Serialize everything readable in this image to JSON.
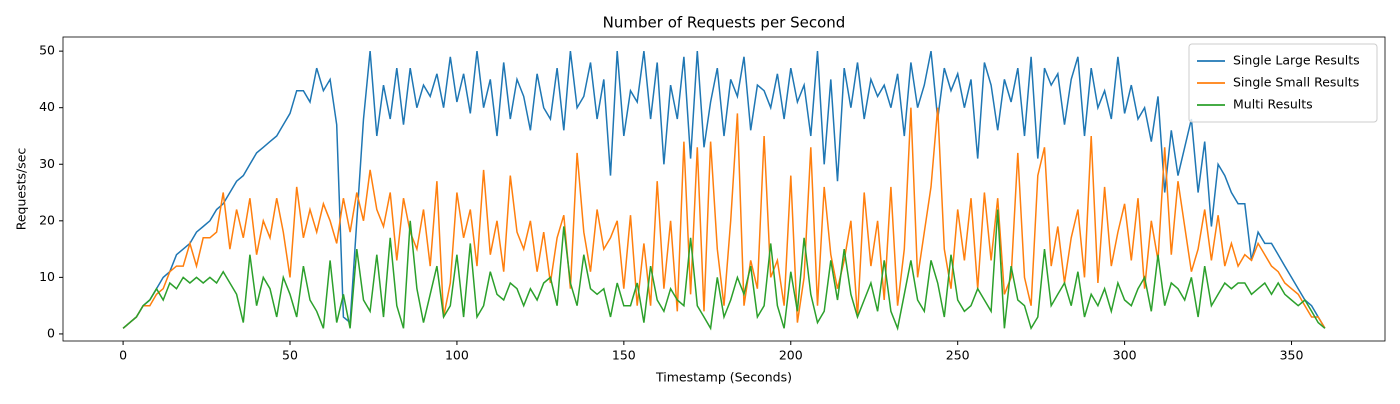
{
  "chart_data": {
    "type": "line",
    "title": "Number of Requests per Second",
    "x_label": "Timestamp (Seconds)",
    "y_label": "Requests/sec",
    "x": [
      0,
      2,
      4,
      6,
      8,
      10,
      12,
      14,
      16,
      18,
      20,
      22,
      24,
      26,
      28,
      30,
      32,
      34,
      36,
      38,
      40,
      42,
      44,
      46,
      48,
      50,
      52,
      54,
      56,
      58,
      60,
      62,
      64,
      66,
      68,
      70,
      72,
      74,
      76,
      78,
      80,
      82,
      84,
      86,
      88,
      90,
      92,
      94,
      96,
      98,
      100,
      102,
      104,
      106,
      108,
      110,
      112,
      114,
      116,
      118,
      120,
      122,
      124,
      126,
      128,
      130,
      132,
      134,
      136,
      138,
      140,
      142,
      144,
      146,
      148,
      150,
      152,
      154,
      156,
      158,
      160,
      162,
      164,
      166,
      168,
      170,
      172,
      174,
      176,
      178,
      180,
      182,
      184,
      186,
      188,
      190,
      192,
      194,
      196,
      198,
      200,
      202,
      204,
      206,
      208,
      210,
      212,
      214,
      216,
      218,
      220,
      222,
      224,
      226,
      228,
      230,
      232,
      234,
      236,
      238,
      240,
      242,
      244,
      246,
      248,
      250,
      252,
      254,
      256,
      258,
      260,
      262,
      264,
      266,
      268,
      270,
      272,
      274,
      276,
      278,
      280,
      282,
      284,
      286,
      288,
      290,
      292,
      294,
      296,
      298,
      300,
      302,
      304,
      306,
      308,
      310,
      312,
      314,
      316,
      318,
      320,
      322,
      324,
      326,
      328,
      330,
      332,
      334,
      336,
      338,
      340,
      342,
      344,
      346,
      348,
      350,
      352,
      354,
      356,
      358,
      360
    ],
    "series": [
      {
        "name": "Single Large Results",
        "color": "#1f77b4",
        "values": [
          1,
          2,
          3,
          5,
          6,
          8,
          10,
          11,
          14,
          15,
          16,
          18,
          19,
          20,
          22,
          23,
          25,
          27,
          28,
          30,
          32,
          33,
          34,
          35,
          37,
          39,
          43,
          43,
          41,
          47,
          43,
          45,
          37,
          3,
          2,
          20,
          38,
          50,
          35,
          44,
          38,
          47,
          37,
          47,
          40,
          44,
          42,
          46,
          40,
          49,
          41,
          46,
          39,
          50,
          40,
          45,
          35,
          48,
          38,
          45,
          42,
          36,
          46,
          40,
          38,
          47,
          36,
          50,
          40,
          42,
          48,
          38,
          45,
          28,
          50,
          35,
          43,
          41,
          50,
          38,
          48,
          30,
          44,
          38,
          49,
          31,
          50,
          33,
          41,
          47,
          35,
          45,
          42,
          49,
          36,
          44,
          43,
          40,
          46,
          38,
          47,
          41,
          44,
          35,
          50,
          30,
          45,
          27,
          47,
          40,
          48,
          38,
          45,
          42,
          44,
          40,
          46,
          35,
          48,
          40,
          44,
          50,
          38,
          47,
          43,
          46,
          40,
          45,
          31,
          48,
          44,
          36,
          45,
          41,
          47,
          35,
          49,
          31,
          47,
          44,
          46,
          37,
          45,
          49,
          35,
          47,
          40,
          43,
          38,
          49,
          39,
          44,
          38,
          40,
          34,
          42,
          25,
          36,
          28,
          33,
          38,
          25,
          34,
          19,
          30,
          28,
          25,
          23,
          23,
          13,
          18,
          16,
          16,
          14,
          12,
          10,
          8,
          6,
          5,
          3,
          1
        ]
      },
      {
        "name": "Single Small Results",
        "color": "#ff7f0e",
        "values": [
          1,
          2,
          3,
          5,
          5,
          7,
          8,
          11,
          12,
          12,
          16,
          12,
          17,
          17,
          18,
          25,
          15,
          22,
          17,
          24,
          14,
          20,
          17,
          24,
          18,
          10,
          26,
          17,
          22,
          18,
          23,
          20,
          16,
          24,
          18,
          25,
          20,
          29,
          22,
          19,
          25,
          13,
          24,
          18,
          15,
          22,
          12,
          27,
          3,
          9,
          25,
          17,
          22,
          12,
          29,
          14,
          20,
          11,
          28,
          18,
          15,
          20,
          11,
          18,
          9,
          17,
          21,
          8,
          32,
          18,
          11,
          22,
          15,
          17,
          20,
          8,
          21,
          5,
          16,
          5,
          27,
          8,
          20,
          4,
          34,
          7,
          33,
          4,
          34,
          15,
          5,
          20,
          39,
          5,
          13,
          8,
          35,
          10,
          13,
          5,
          28,
          2,
          10,
          33,
          5,
          26,
          14,
          8,
          13,
          20,
          3,
          25,
          12,
          20,
          6,
          26,
          5,
          15,
          40,
          10,
          18,
          26,
          40,
          15,
          8,
          22,
          13,
          24,
          8,
          25,
          13,
          24,
          7,
          10,
          32,
          10,
          5,
          28,
          33,
          12,
          19,
          9,
          17,
          22,
          10,
          35,
          9,
          26,
          12,
          18,
          23,
          13,
          24,
          8,
          20,
          13,
          33,
          14,
          27,
          19,
          11,
          15,
          22,
          13,
          21,
          12,
          16,
          12,
          14,
          13,
          16,
          14,
          12,
          11,
          9,
          8,
          7,
          5,
          3,
          3,
          1
        ]
      },
      {
        "name": "Multi Results",
        "color": "#2ca02c",
        "values": [
          1,
          2,
          3,
          5,
          6,
          8,
          6,
          9,
          8,
          10,
          9,
          10,
          9,
          10,
          9,
          11,
          9,
          7,
          2,
          14,
          5,
          10,
          8,
          3,
          10,
          7,
          3,
          12,
          6,
          4,
          1,
          13,
          2,
          7,
          1,
          15,
          6,
          4,
          14,
          3,
          17,
          5,
          1,
          20,
          8,
          2,
          7,
          12,
          3,
          5,
          14,
          3,
          16,
          3,
          5,
          11,
          7,
          6,
          9,
          8,
          5,
          8,
          6,
          9,
          10,
          5,
          19,
          9,
          5,
          14,
          8,
          7,
          8,
          3,
          9,
          5,
          5,
          9,
          2,
          12,
          6,
          4,
          8,
          6,
          5,
          17,
          5,
          3,
          1,
          10,
          3,
          6,
          10,
          7,
          12,
          3,
          5,
          16,
          5,
          1,
          11,
          4,
          17,
          7,
          2,
          4,
          13,
          6,
          15,
          7,
          3,
          6,
          9,
          4,
          13,
          4,
          1,
          7,
          13,
          6,
          4,
          13,
          9,
          3,
          14,
          6,
          4,
          5,
          8,
          6,
          4,
          22,
          1,
          12,
          6,
          5,
          1,
          3,
          15,
          5,
          7,
          9,
          5,
          11,
          3,
          7,
          5,
          8,
          4,
          9,
          6,
          5,
          8,
          10,
          4,
          14,
          5,
          9,
          8,
          6,
          10,
          3,
          12,
          5,
          7,
          9,
          8,
          9,
          9,
          7,
          8,
          9,
          7,
          9,
          7,
          6,
          5,
          6,
          4,
          2,
          1
        ]
      }
    ],
    "xlim": [
      -18,
      378
    ],
    "ylim": [
      -1.25,
      52.5
    ],
    "xticks": [
      0,
      50,
      100,
      150,
      200,
      250,
      300,
      350
    ],
    "yticks": [
      0,
      10,
      20,
      30,
      40,
      50
    ],
    "legend": "upper right"
  }
}
